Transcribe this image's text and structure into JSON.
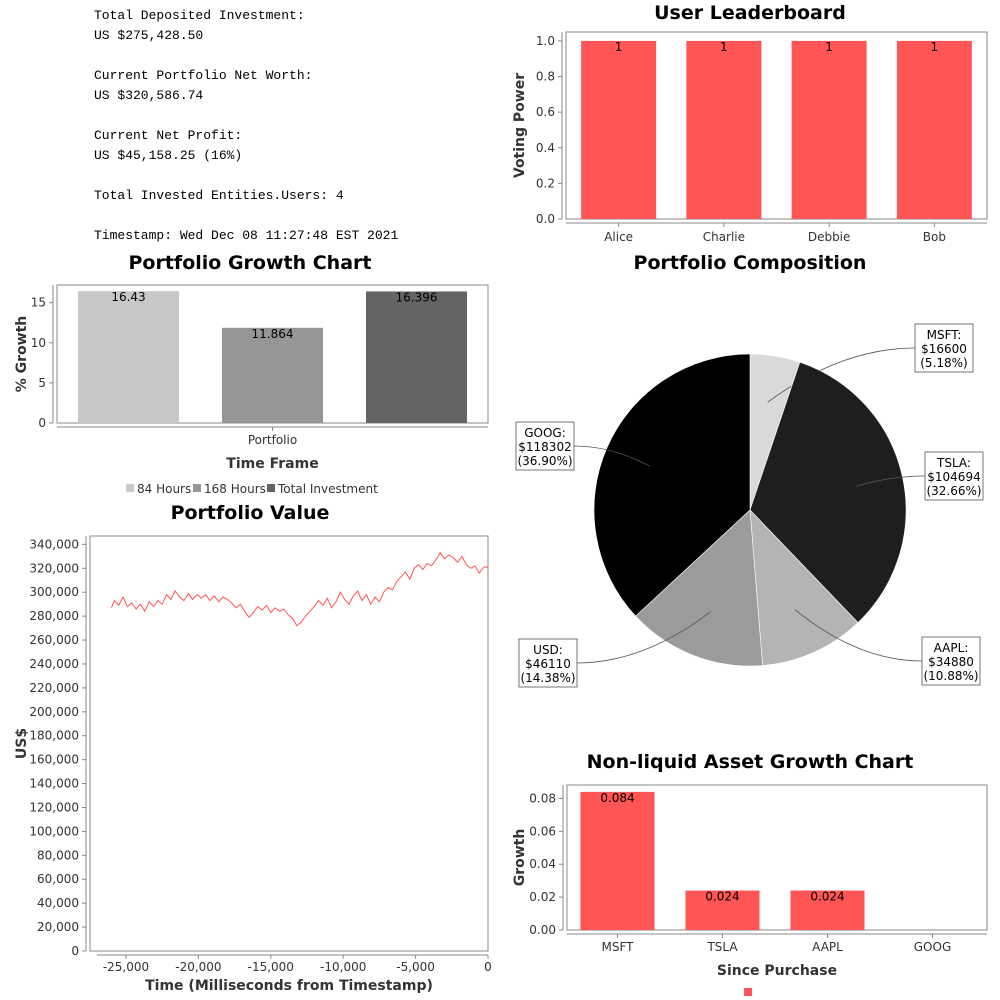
{
  "summary": {
    "deposited_label": "Total Deposited Investment:",
    "deposited_value": "US $275,428.50",
    "networth_label": "Current Portfolio Net Worth:",
    "networth_value": "US $320,586.74",
    "profit_label": "Current Net Profit:",
    "profit_value": "US $45,158.25 (16%)",
    "users_line": "Total Invested Entities.Users: 4",
    "timestamp_line": "Timestamp: Wed Dec 08 11:27:48 EST 2021"
  },
  "colors": {
    "red": "#ff5555",
    "light_gray": "#c8c8c8",
    "mid_gray": "#969696",
    "dark_gray": "#646464"
  },
  "chart_data": [
    {
      "id": "leaderboard",
      "type": "bar",
      "title": "User Leaderboard",
      "xlabel": "",
      "ylabel": "Voting Power",
      "categories": [
        "Alice",
        "Charlie",
        "Debbie",
        "Bob"
      ],
      "values": [
        1,
        1,
        1,
        1
      ],
      "data_labels": [
        "1",
        "1",
        "1",
        "1"
      ],
      "ylim": [
        0,
        1.05
      ],
      "yticks": [
        "0.0",
        "0.2",
        "0.4",
        "0.6",
        "0.8",
        "1.0"
      ],
      "grid": false
    },
    {
      "id": "growth",
      "type": "bar",
      "title": "Portfolio Growth Chart",
      "xlabel": "Time Frame",
      "ylabel": "% Growth",
      "categories": [
        "Portfolio"
      ],
      "series": [
        {
          "name": "84 Hours",
          "values": [
            16.43
          ],
          "label": "16.43"
        },
        {
          "name": "168 Hours",
          "values": [
            11.864
          ],
          "label": "11.864"
        },
        {
          "name": "Total Investment",
          "values": [
            16.396
          ],
          "label": "16.396"
        }
      ],
      "ylim": [
        0,
        17.2
      ],
      "yticks": [
        "0",
        "5",
        "10",
        "15"
      ],
      "legend": "bottom",
      "grid": false
    },
    {
      "id": "value",
      "type": "line",
      "title": "Portfolio Value",
      "xlabel": "Time (Milliseconds from Timestamp)",
      "ylabel": "US$",
      "xlim": [
        -27000,
        0
      ],
      "ylim": [
        0,
        347000
      ],
      "xticks": [
        "-25,000",
        "-20,000",
        "-15,000",
        "-10,000",
        "-5,000",
        "0"
      ],
      "yticks": [
        "0",
        "20,000",
        "40,000",
        "60,000",
        "80,000",
        "100,000",
        "120,000",
        "140,000",
        "160,000",
        "180,000",
        "200,000",
        "220,000",
        "240,000",
        "260,000",
        "280,000",
        "300,000",
        "320,000",
        "340,000"
      ],
      "x": [
        -26000,
        -25800,
        -25500,
        -25200,
        -24900,
        -24600,
        -24300,
        -24000,
        -23700,
        -23400,
        -23100,
        -22800,
        -22500,
        -22200,
        -21900,
        -21600,
        -21300,
        -21000,
        -20700,
        -20400,
        -20100,
        -19800,
        -19500,
        -19200,
        -18900,
        -18600,
        -18300,
        -18000,
        -17700,
        -17400,
        -17100,
        -16800,
        -16500,
        -16200,
        -15900,
        -15600,
        -15300,
        -15000,
        -14700,
        -14400,
        -14100,
        -13800,
        -13500,
        -13200,
        -12900,
        -12600,
        -12300,
        -12000,
        -11700,
        -11400,
        -11100,
        -10800,
        -10500,
        -10200,
        -9900,
        -9600,
        -9300,
        -9000,
        -8700,
        -8400,
        -8100,
        -7800,
        -7500,
        -7200,
        -6900,
        -6600,
        -6300,
        -6000,
        -5700,
        -5400,
        -5100,
        -4800,
        -4500,
        -4200,
        -3900,
        -3600,
        -3300,
        -3000,
        -2700,
        -2400,
        -2100,
        -1800,
        -1500,
        -1200,
        -900,
        -600,
        -300,
        0
      ],
      "y": [
        287000,
        293000,
        289000,
        296000,
        288000,
        291000,
        286000,
        290000,
        284000,
        292000,
        288000,
        293000,
        290000,
        298000,
        294000,
        301000,
        296000,
        293000,
        299000,
        294000,
        298000,
        295000,
        298000,
        293000,
        297000,
        292000,
        296000,
        294000,
        291000,
        287000,
        290000,
        284000,
        279000,
        283000,
        288000,
        285000,
        289000,
        283000,
        287000,
        284000,
        286000,
        281000,
        278000,
        272000,
        275000,
        280000,
        284000,
        288000,
        293000,
        289000,
        295000,
        287000,
        292000,
        300000,
        294000,
        290000,
        297000,
        301000,
        293000,
        298000,
        290000,
        296000,
        292000,
        300000,
        304000,
        302000,
        309000,
        313000,
        317000,
        311000,
        320000,
        323000,
        319000,
        324000,
        322000,
        327000,
        333000,
        328000,
        331000,
        329000,
        325000,
        330000,
        323000,
        320000,
        322000,
        316000,
        321000,
        321000
      ],
      "grid": false
    },
    {
      "id": "composition",
      "type": "pie",
      "title": "Portfolio Composition",
      "slices": [
        {
          "name": "MSFT",
          "value": 16600,
          "percent": 5.18,
          "line1": "MSFT:",
          "line2": "$16600",
          "line3": "(5.18%)",
          "color": "#d9d9d9"
        },
        {
          "name": "TSLA",
          "value": 104694,
          "percent": 32.66,
          "line1": "TSLA:",
          "line2": "$104694",
          "line3": "(32.66%)",
          "color": "#1e1e1e"
        },
        {
          "name": "AAPL",
          "value": 34880,
          "percent": 10.88,
          "line1": "AAPL:",
          "line2": "$34880",
          "line3": "(10.88%)",
          "color": "#b4b4b4"
        },
        {
          "name": "USD",
          "value": 46110,
          "percent": 14.38,
          "line1": "USD:",
          "line2": "$46110",
          "line3": "(14.38%)",
          "color": "#9b9b9b"
        },
        {
          "name": "GOOG",
          "value": 118302,
          "percent": 36.9,
          "line1": "GOOG:",
          "line2": "$118302",
          "line3": "(36.90%)",
          "color": "#000000"
        }
      ]
    },
    {
      "id": "nonliquid",
      "type": "bar",
      "title": "Non-liquid Asset Growth Chart",
      "xlabel": "Since Purchase",
      "ylabel": "Growth",
      "categories": [
        "MSFT",
        "TSLA",
        "AAPL",
        "GOOG"
      ],
      "values": [
        0.084,
        0.024,
        0.024,
        0
      ],
      "data_labels": [
        "0.084",
        "0.024",
        "0.024",
        ""
      ],
      "ylim": [
        0,
        0.0882
      ],
      "yticks": [
        "0.00",
        "0.02",
        "0.04",
        "0.06",
        "0.08"
      ],
      "legend": "bottom",
      "grid": false
    }
  ]
}
